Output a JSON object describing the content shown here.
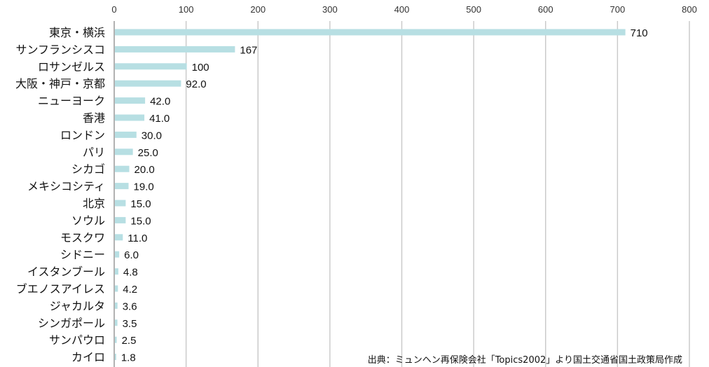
{
  "chart_data": {
    "type": "bar",
    "orientation": "horizontal",
    "categories": [
      "東京・横浜",
      "サンフランシスコ",
      "ロサンゼルス",
      "大阪・神戸・京都",
      "ニューヨーク",
      "香港",
      "ロンドン",
      "パリ",
      "シカゴ",
      "メキシコシティ",
      "北京",
      "ソウル",
      "モスクワ",
      "シドニー",
      "イスタンブール",
      "ブエノスアイレス",
      "ジャカルタ",
      "シンガポール",
      "サンパウロ",
      "カイロ"
    ],
    "values": [
      710,
      167,
      100,
      92.0,
      42.0,
      41.0,
      30.0,
      25.0,
      20.0,
      19.0,
      15.0,
      15.0,
      11.0,
      6.0,
      4.8,
      4.2,
      3.6,
      3.5,
      2.5,
      1.8
    ],
    "value_labels": [
      "710",
      "167",
      "100",
      "92.0",
      "42.0",
      "41.0",
      "30.0",
      "25.0",
      "20.0",
      "19.0",
      "15.0",
      "15.0",
      "11.0",
      "6.0",
      "4.8",
      "4.2",
      "3.6",
      "3.5",
      "2.5",
      "1.8"
    ],
    "xlim": [
      0,
      800
    ],
    "xticks": [
      0,
      100,
      200,
      300,
      400,
      500,
      600,
      700,
      800
    ],
    "axis_position": "top",
    "grid": true,
    "bar_color": "#b7dfe3",
    "grid_color": "#c8c8c8",
    "title": "",
    "xlabel": "",
    "ylabel": ""
  },
  "source_note": "出典：ミュンヘン再保険会社「Topics2002」より国土交通省国土政策局作成"
}
